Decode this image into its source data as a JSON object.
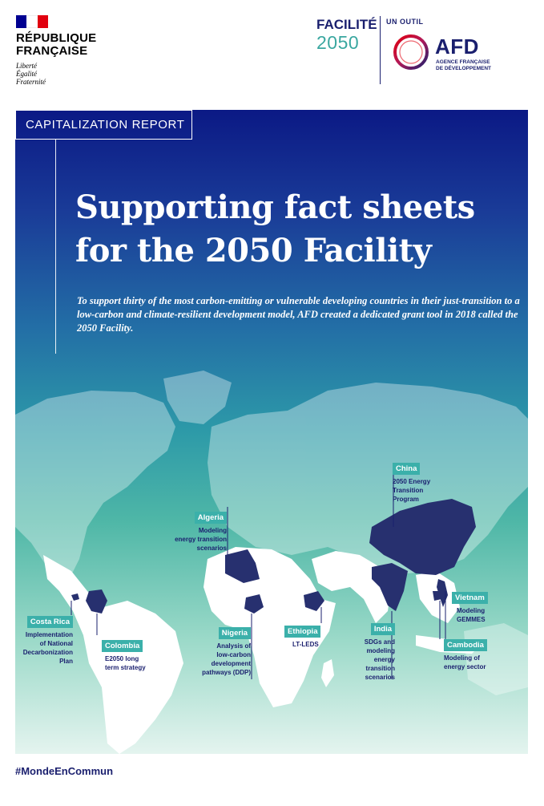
{
  "header": {
    "republique": [
      "RÉPUBLIQUE",
      "FRANÇAISE"
    ],
    "motto": [
      "Liberté",
      "Égalité",
      "Fraternité"
    ],
    "facilite_label": "FACILITÉ",
    "facilite_year": "2050",
    "outil": "UN OUTIL",
    "afd_name": "AFD",
    "afd_sub": [
      "AGENCE FRANÇAISE",
      "DE DÉVELOPPEMENT"
    ],
    "flag_colors": [
      "#000091",
      "#ffffff",
      "#e1000f"
    ]
  },
  "cover": {
    "tag": "CAPITALIZATION REPORT",
    "title": [
      "Supporting fact sheets",
      "for the 2050 Facility"
    ],
    "intro": "To support thirty of the most carbon-emitting or vulnerable developing countries in their just-transition to a low-carbon and climate-resilient development model, AFD created a dedicated grant tool in 2018 called the 2050 Facility."
  },
  "countries": {
    "china": {
      "name": "China",
      "desc": [
        "2050 Energy",
        "Transition",
        "Program"
      ]
    },
    "algeria": {
      "name": "Algeria",
      "desc": [
        "Modeling",
        "energy transition",
        "scenarios"
      ]
    },
    "vietnam": {
      "name": "Vietnam",
      "desc": [
        "Modeling",
        "GEMMES"
      ]
    },
    "costa_rica": {
      "name": "Costa Rica",
      "desc": [
        "Implementation",
        "of National",
        "Decarbonization",
        "Plan"
      ]
    },
    "colombia": {
      "name": "Colombia",
      "desc": [
        "E2050 long",
        "term strategy"
      ]
    },
    "nigeria": {
      "name": "Nigeria",
      "desc": [
        "Analysis of",
        "low-carbon",
        "development",
        "pathways (DDP)"
      ]
    },
    "ethiopia": {
      "name": "Ethiopia",
      "desc": [
        "LT-LEDS"
      ]
    },
    "india": {
      "name": "India",
      "desc": [
        "SDGs and",
        "modeling",
        "energy",
        "transition",
        "scenarios"
      ]
    },
    "cambodia": {
      "name": "Cambodia",
      "desc": [
        "Modeling of",
        "energy sector"
      ]
    }
  },
  "footer": {
    "hashtag": "#MondeEnCommun"
  },
  "colors": {
    "navy": "#1a1f6e",
    "teal": "#3bb0aa",
    "highlight_country": "#27306f"
  }
}
